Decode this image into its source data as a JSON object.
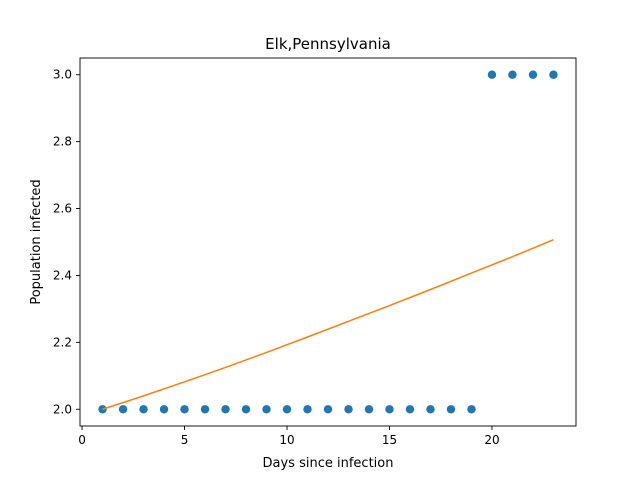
{
  "chart_data": {
    "type": "scatter",
    "title": "Elk,Pennsylvania",
    "xlabel": "Days since infection",
    "ylabel": "Population infected",
    "xlim": [
      -0.1,
      24.1
    ],
    "ylim": [
      1.95,
      3.05
    ],
    "xticks": [
      0,
      5,
      10,
      15,
      20
    ],
    "yticks": [
      2.0,
      2.2,
      2.4,
      2.6,
      2.8,
      3.0
    ],
    "ytick_labels": [
      "2.0",
      "2.2",
      "2.4",
      "2.6",
      "2.8",
      "3.0"
    ],
    "grid": false,
    "series": [
      {
        "kind": "scatter",
        "color": "#1f77b4",
        "x": [
          1,
          2,
          3,
          4,
          5,
          6,
          7,
          8,
          9,
          10,
          11,
          12,
          13,
          14,
          15,
          16,
          17,
          18,
          19,
          20,
          21,
          22,
          23
        ],
        "y": [
          2,
          2,
          2,
          2,
          2,
          2,
          2,
          2,
          2,
          2,
          2,
          2,
          2,
          2,
          2,
          2,
          2,
          2,
          2,
          3,
          3,
          3,
          3
        ]
      },
      {
        "kind": "line",
        "color": "#ff7f0e",
        "x": [
          1,
          3,
          5,
          7,
          9,
          11,
          13,
          15,
          17,
          19,
          21,
          23
        ],
        "y": [
          2.0,
          2.04,
          2.082,
          2.125,
          2.17,
          2.216,
          2.263,
          2.31,
          2.358,
          2.407,
          2.456,
          2.507
        ]
      }
    ]
  }
}
